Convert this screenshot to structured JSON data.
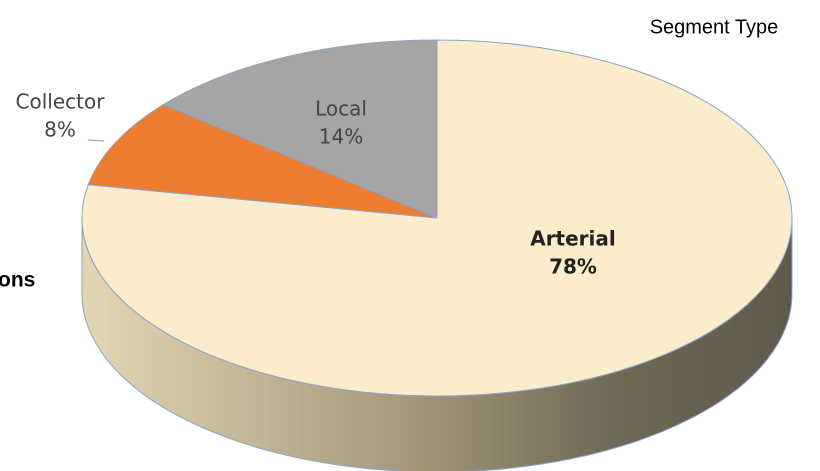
{
  "chart_data": {
    "type": "pie",
    "title": "Segment Type",
    "annotation": "ons",
    "categories": [
      "Arterial",
      "Collector",
      "Local"
    ],
    "values": [
      78,
      8,
      14
    ],
    "value_labels": [
      "78%",
      "8%",
      "14%"
    ],
    "colors": [
      "#fbedcc",
      "#ed7d31",
      "#a5a5a5"
    ]
  }
}
